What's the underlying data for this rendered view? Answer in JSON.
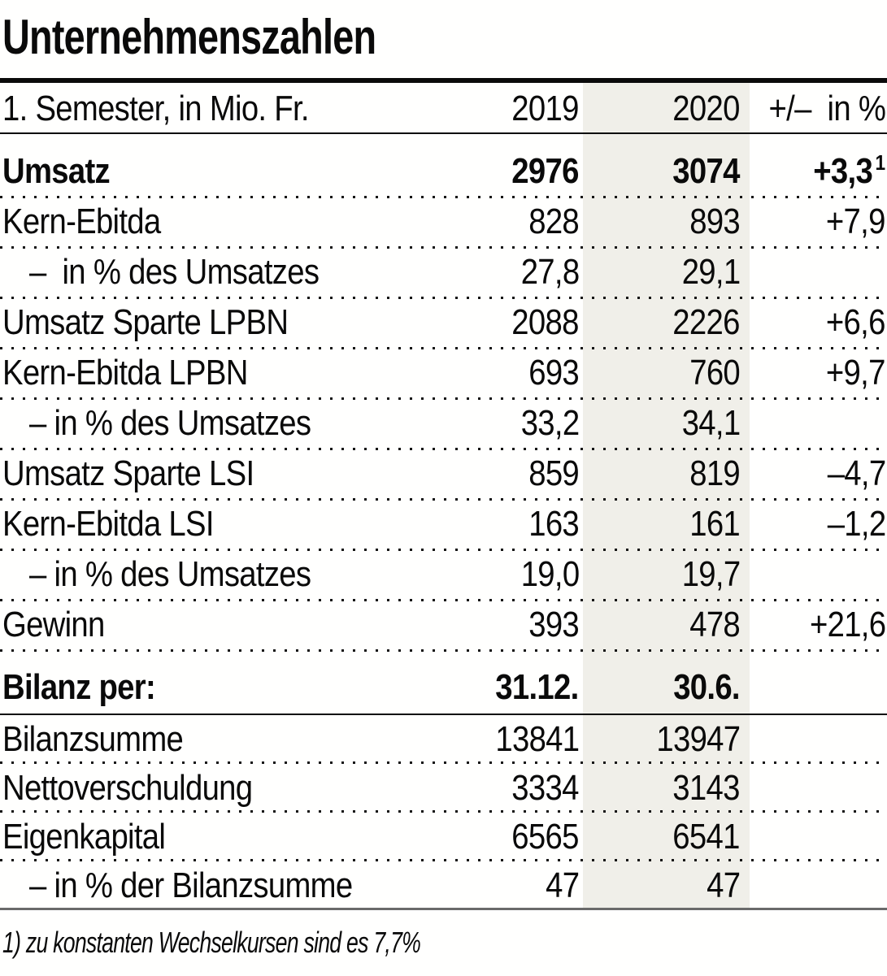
{
  "chart_data": {
    "type": "table",
    "title": "Unternehmenszahlen",
    "header": {
      "label": "1. Semester, in Mio. Fr.",
      "col_2019": "2019",
      "col_2020": "2020",
      "col_delta": "+/–  in %"
    },
    "rows": [
      {
        "label": "Umsatz",
        "v2019": "2976",
        "v2020": "3074",
        "delta": "+3,3",
        "delta_sup": "1",
        "bold": true
      },
      {
        "label": "Kern-Ebitda",
        "v2019": "828",
        "v2020": "893",
        "delta": "+7,9"
      },
      {
        "label": "–  in % des Umsatzes",
        "v2019": "27,8",
        "v2020": "29,1",
        "delta": "",
        "indent": true
      },
      {
        "label": "Umsatz Sparte LPBN",
        "v2019": "2088",
        "v2020": "2226",
        "delta": "+6,6"
      },
      {
        "label": "Kern-Ebitda LPBN",
        "v2019": "693",
        "v2020": "760",
        "delta": "+9,7"
      },
      {
        "label": "– in % des Umsatzes",
        "v2019": "33,2",
        "v2020": "34,1",
        "delta": "",
        "indent": true
      },
      {
        "label": "Umsatz Sparte LSI",
        "v2019": "859",
        "v2020": "819",
        "delta": "–4,7"
      },
      {
        "label": "Kern-Ebitda LSI",
        "v2019": "163",
        "v2020": "161",
        "delta": "–1,2"
      },
      {
        "label": "– in % des Umsatzes",
        "v2019": "19,0",
        "v2020": "19,7",
        "delta": "",
        "indent": true
      },
      {
        "label": "Gewinn",
        "v2019": "393",
        "v2020": "478",
        "delta": "+21,6"
      },
      {
        "label": "Bilanz per:",
        "v2019": "31.12.",
        "v2020": "30.6.",
        "delta": "",
        "bold": true,
        "section": true
      },
      {
        "label": "Bilanzsumme",
        "v2019": "13841",
        "v2020": "13947",
        "delta": ""
      },
      {
        "label": "Nettoverschuldung",
        "v2019": "3334",
        "v2020": "3143",
        "delta": ""
      },
      {
        "label": "Eigenkapital",
        "v2019": "6565",
        "v2020": "6541",
        "delta": ""
      },
      {
        "label": "– in % der Bilanzsumme",
        "v2019": "47",
        "v2020": "47",
        "delta": "",
        "indent": true,
        "last": true
      }
    ],
    "footnote": "1) zu konstanten Wechselkursen sind es 7,7%",
    "colors": {
      "highlight_column": "#f0efe9",
      "text": "#0a0a0a",
      "footer_rule": "#6a6a6a"
    }
  }
}
